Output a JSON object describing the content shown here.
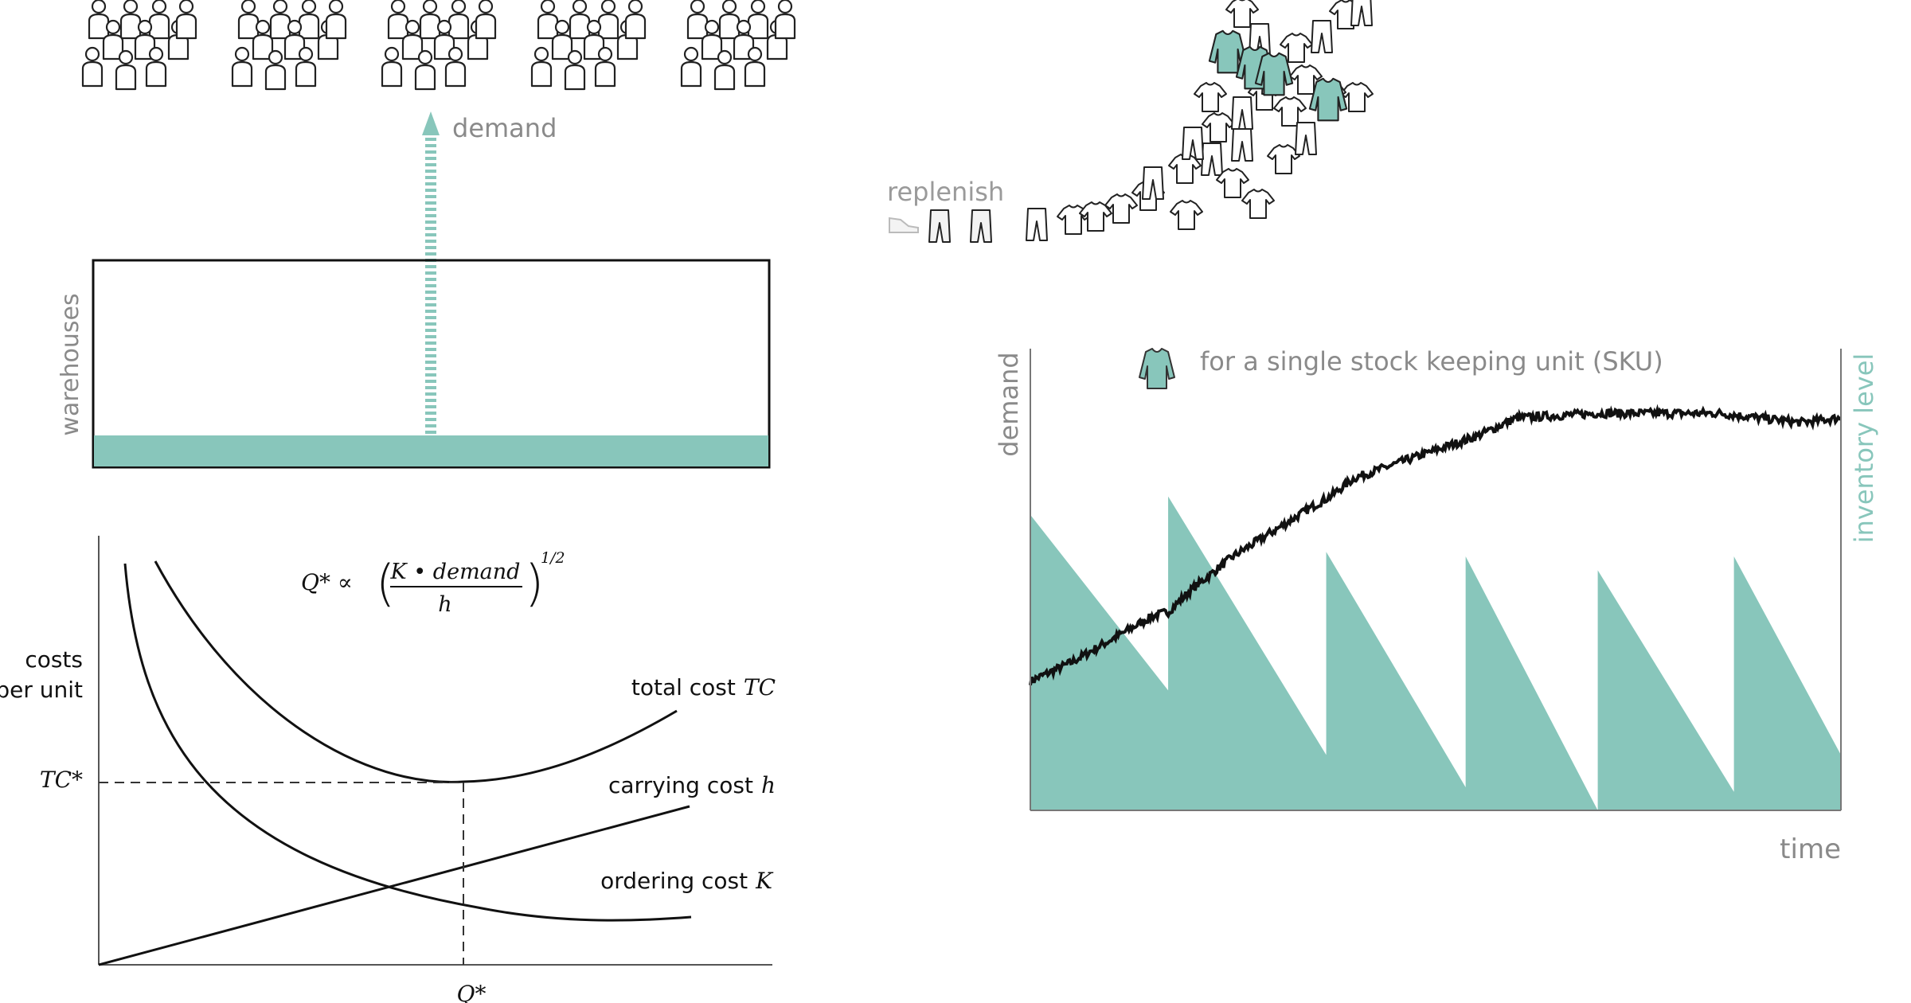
{
  "colors": {
    "teal": "#88c6bb",
    "gray_text": "#8a8a8a",
    "line": "#111111"
  },
  "top_left": {
    "demand_label": "demand",
    "warehouses_label": "warehouses",
    "people_icon": "person-icon"
  },
  "top_right": {
    "replenish_label": "replenish",
    "clothing_icons": [
      "shirt-icon",
      "pants-icon",
      "sweater-icon",
      "shoe-icon"
    ]
  },
  "cost_chart": {
    "formula_lhs": "Q* ∝",
    "formula_num": "K • demand",
    "formula_den": "h",
    "formula_exp": "1/2",
    "ylabel_line1": "costs",
    "ylabel_line2": "per unit",
    "tc_star": "TC*",
    "q_star": "Q*",
    "total_cost_label": "total cost",
    "total_cost_sym": "TC",
    "carrying_cost_label": "carrying cost",
    "carrying_cost_sym": "h",
    "ordering_cost_label": "ordering cost",
    "ordering_cost_sym": "K"
  },
  "chart_data": {
    "type": "area",
    "title": "for a single stock keeping unit (SKU)",
    "xlabel": "time",
    "ylabel": "demand",
    "y2label": "inventory level",
    "x": [
      0,
      5,
      10,
      15,
      17,
      20,
      25,
      35,
      37,
      40,
      50,
      55,
      60,
      70,
      75,
      80,
      85,
      90,
      95,
      100
    ],
    "series": [
      {
        "name": "demand",
        "values": [
          0.28,
          0.32,
          0.37,
          0.42,
          0.43,
          0.48,
          0.55,
          0.66,
          0.68,
          0.72,
          0.78,
          0.81,
          0.85,
          0.86,
          0.86,
          0.86,
          0.86,
          0.85,
          0.84,
          0.85
        ]
      }
    ],
    "inventory_cycles": [
      {
        "start": 0,
        "end": 17,
        "top": 0.64,
        "bottom": 0.26
      },
      {
        "start": 17,
        "end": 36.5,
        "top": 0.68,
        "bottom": 0.12
      },
      {
        "start": 36.5,
        "end": 53.7,
        "top": 0.56,
        "bottom": 0.05
      },
      {
        "start": 53.7,
        "end": 70,
        "top": 0.55,
        "bottom": 0.0
      },
      {
        "start": 70,
        "end": 86.8,
        "top": 0.52,
        "bottom": 0.04
      },
      {
        "start": 86.8,
        "end": 100,
        "top": 0.55,
        "bottom": 0.12
      }
    ],
    "ylim": [
      0,
      1
    ],
    "grid": false
  }
}
